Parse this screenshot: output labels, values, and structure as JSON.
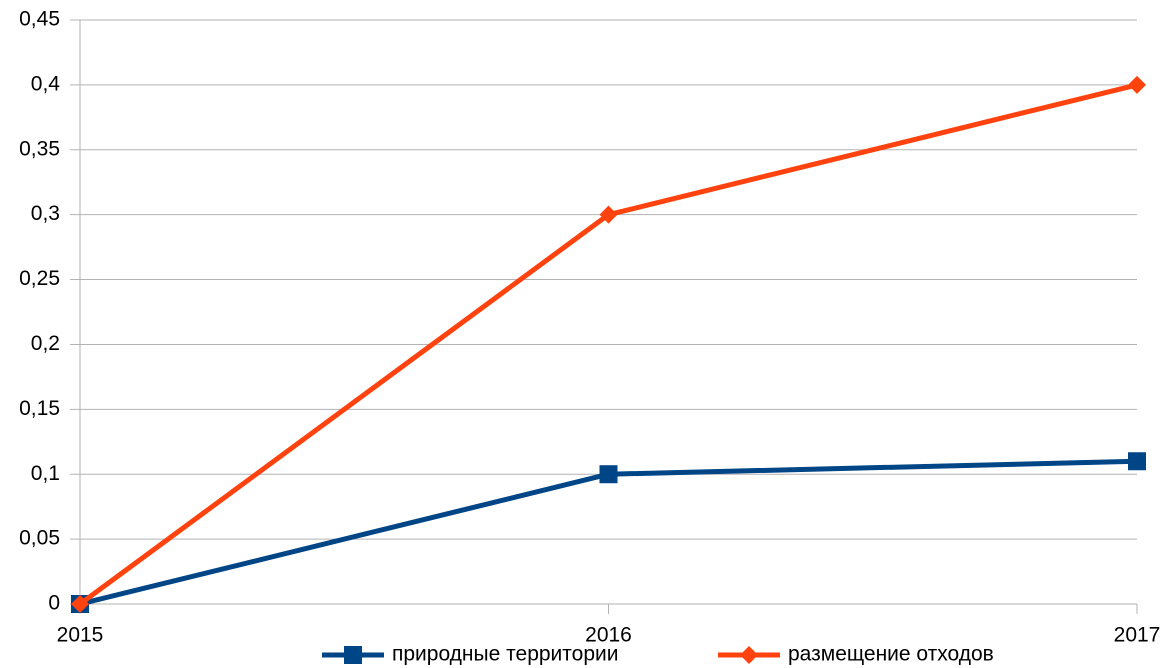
{
  "chart_data": {
    "type": "line",
    "categories": [
      "2015",
      "2016",
      "2017"
    ],
    "series": [
      {
        "name": "природные территории",
        "color": "#004586",
        "marker": "square",
        "values": [
          0,
          0.1,
          0.11
        ]
      },
      {
        "name": "размещение отходов",
        "color": "#ff420e",
        "marker": "diamond",
        "values": [
          0,
          0.3,
          0.4
        ]
      }
    ],
    "ylim": [
      0,
      0.45
    ],
    "yticks": [
      0,
      {
        "value": 0.05,
        "label": "0,05"
      },
      {
        "value": 0.1,
        "label": "0,1"
      },
      {
        "value": 0.15,
        "label": "0,15"
      },
      {
        "value": 0.2,
        "label": "0,2"
      },
      {
        "value": 0.25,
        "label": "0,25"
      },
      {
        "value": 0.3,
        "label": "0,3"
      },
      {
        "value": 0.35,
        "label": "0,35"
      },
      {
        "value": 0.4,
        "label": "0,4"
      },
      {
        "value": 0.45,
        "label": "0,45"
      }
    ],
    "grid": true,
    "legend": "bottom"
  }
}
